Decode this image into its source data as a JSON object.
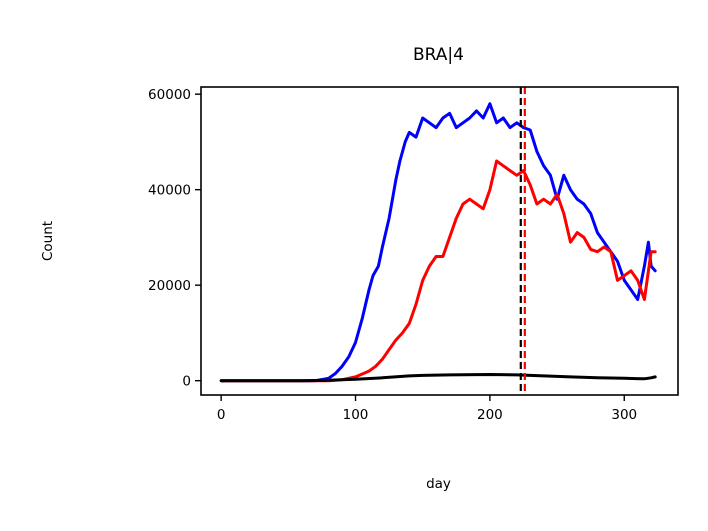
{
  "chart_data": {
    "type": "line",
    "title": "BRA|4",
    "xlabel": "day",
    "ylabel": "Count",
    "xlim": [
      -15,
      340
    ],
    "ylim": [
      -3000,
      61500
    ],
    "x_ticks": [
      0,
      100,
      200,
      300
    ],
    "y_ticks": [
      0,
      20000,
      40000,
      60000
    ],
    "grid": false,
    "legend": "none",
    "series": [
      {
        "color": "#0000ff",
        "x": [
          0,
          70,
          80,
          85,
          90,
          95,
          100,
          105,
          110,
          113,
          117,
          120,
          125,
          130,
          133,
          137,
          140,
          145,
          150,
          155,
          160,
          165,
          170,
          175,
          180,
          185,
          190,
          195,
          200,
          205,
          210,
          215,
          220,
          225,
          230,
          235,
          240,
          245,
          250,
          255,
          260,
          265,
          270,
          275,
          280,
          285,
          290,
          295,
          300,
          305,
          310,
          315,
          318,
          320,
          323
        ],
        "y": [
          0,
          0,
          500,
          1500,
          3000,
          5000,
          8000,
          13000,
          19000,
          22000,
          24000,
          28000,
          34000,
          42000,
          46000,
          50000,
          52000,
          51000,
          55000,
          54000,
          53000,
          55000,
          56000,
          53000,
          54000,
          55000,
          56500,
          55000,
          58000,
          54000,
          55000,
          53000,
          54000,
          53000,
          52500,
          48000,
          45000,
          43000,
          38000,
          43000,
          40000,
          38000,
          37000,
          35000,
          31000,
          29000,
          27000,
          25000,
          21000,
          19000,
          17000,
          24000,
          29000,
          24000,
          23000
        ]
      },
      {
        "color": "#ff0000",
        "x": [
          0,
          80,
          90,
          100,
          110,
          115,
          120,
          125,
          130,
          135,
          140,
          145,
          150,
          155,
          160,
          165,
          170,
          175,
          180,
          185,
          190,
          195,
          200,
          205,
          210,
          215,
          220,
          225,
          230,
          235,
          240,
          245,
          250,
          255,
          260,
          265,
          270,
          275,
          280,
          285,
          290,
          295,
          300,
          305,
          310,
          315,
          320,
          323
        ],
        "y": [
          0,
          0,
          200,
          800,
          2000,
          3000,
          4500,
          6500,
          8500,
          10000,
          12000,
          16000,
          21000,
          24000,
          26000,
          26000,
          30000,
          34000,
          37000,
          38000,
          37000,
          36000,
          40000,
          46000,
          45000,
          44000,
          43000,
          44000,
          41000,
          37000,
          38000,
          37000,
          39000,
          35000,
          29000,
          31000,
          30000,
          27500,
          27000,
          28000,
          27000,
          21000,
          22000,
          23000,
          21000,
          17000,
          27000,
          27000
        ]
      },
      {
        "color": "#000000",
        "x": [
          0,
          60,
          80,
          100,
          120,
          140,
          150,
          170,
          200,
          220,
          240,
          260,
          280,
          300,
          315,
          320,
          323
        ],
        "y": [
          0,
          0,
          100,
          300,
          600,
          1000,
          1100,
          1200,
          1300,
          1200,
          1000,
          800,
          600,
          500,
          400,
          600,
          800
        ]
      }
    ],
    "vlines": [
      {
        "x": 223,
        "color": "#000000",
        "style": "dashed"
      },
      {
        "x": 226,
        "color": "#ff0000",
        "style": "dashed"
      }
    ]
  }
}
